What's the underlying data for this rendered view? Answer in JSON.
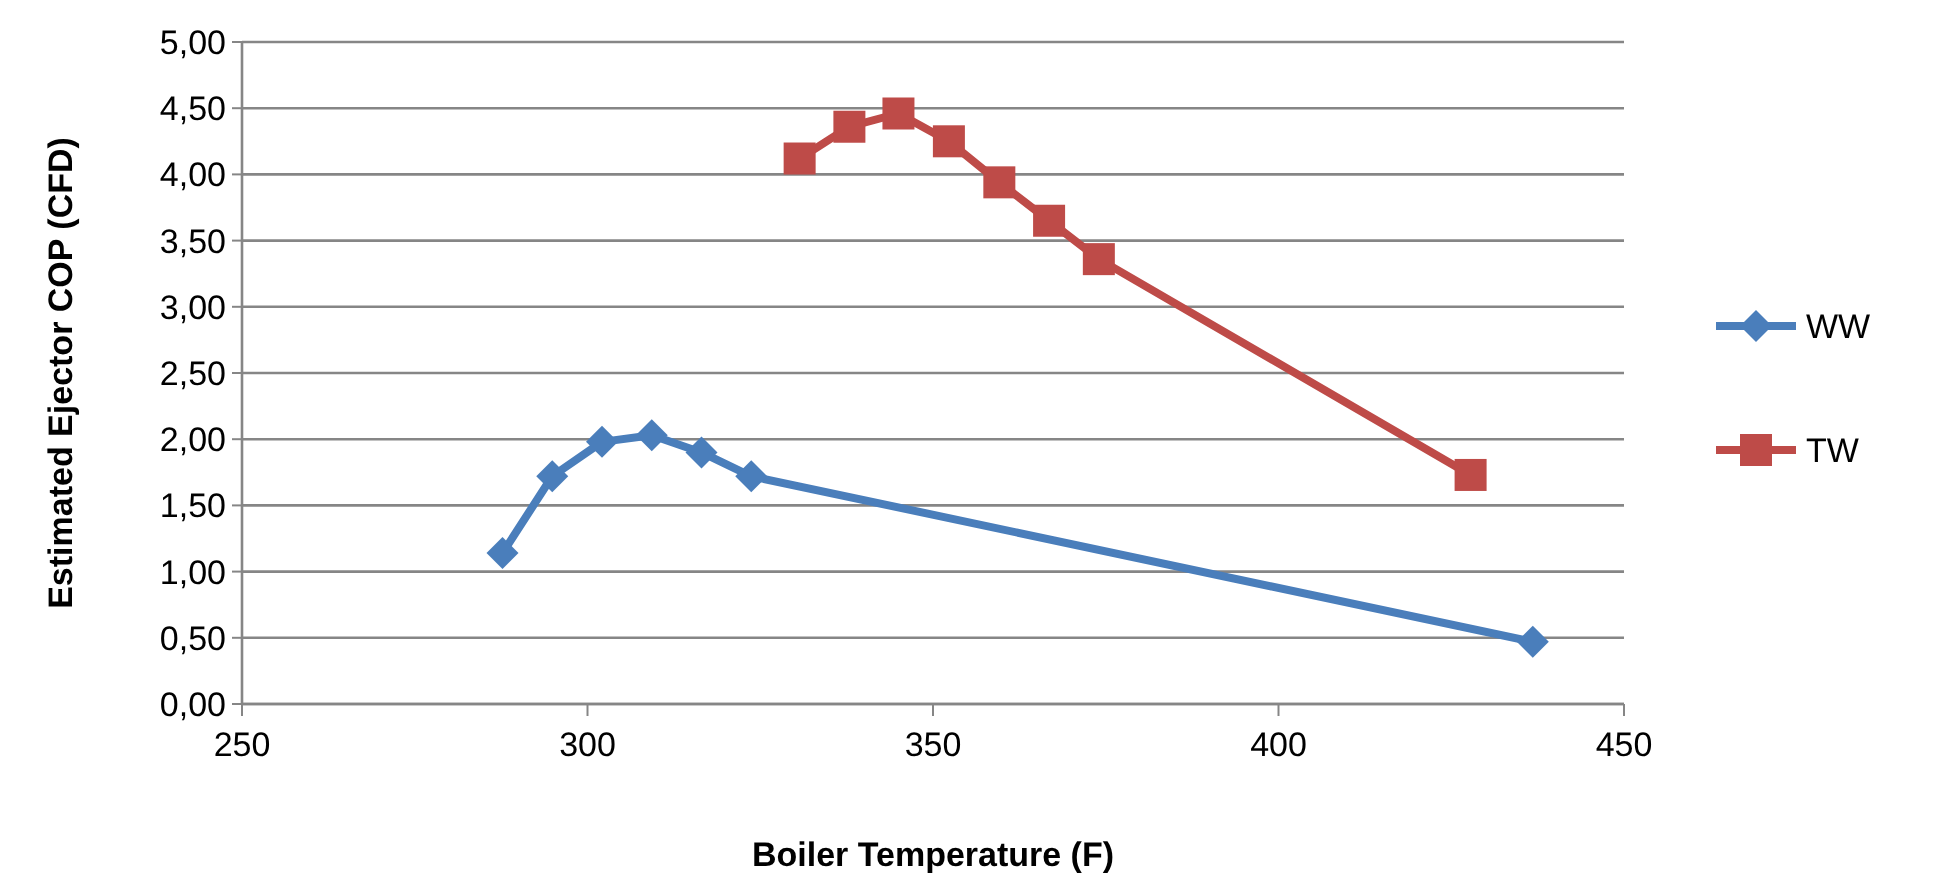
{
  "chart_data": {
    "type": "line",
    "xlabel": "Boiler Temperature (F)",
    "ylabel": "Estimated Ejector COP (CFD)",
    "xlim": [
      250,
      450
    ],
    "xticks": [
      250,
      300,
      350,
      400,
      450
    ],
    "ylim": [
      0,
      5
    ],
    "yticks": [
      {
        "value": 0,
        "label": "0,00"
      },
      {
        "value": 0.5,
        "label": "0,50"
      },
      {
        "value": 1,
        "label": "1,00"
      },
      {
        "value": 1.5,
        "label": "1,50"
      },
      {
        "value": 2,
        "label": "2,00"
      },
      {
        "value": 2.5,
        "label": "2,50"
      },
      {
        "value": 3,
        "label": "3,00"
      },
      {
        "value": 3.5,
        "label": "3,50"
      },
      {
        "value": 4,
        "label": "4,00"
      },
      {
        "value": 4.5,
        "label": "4,50"
      },
      {
        "value": 5,
        "label": "5,00"
      }
    ],
    "grid": "y",
    "legend": "right",
    "line_style": "solid",
    "series": [
      {
        "name": "WW",
        "color": "#4a7ebb",
        "marker": "diamond",
        "x": [
          287.7,
          294.9,
          302.1,
          309.3,
          316.5,
          323.7,
          436.8
        ],
        "values": [
          1.14,
          1.72,
          1.98,
          2.03,
          1.9,
          1.72,
          0.47
        ]
      },
      {
        "name": "TW",
        "color": "#be4b48",
        "marker": "square",
        "x": [
          330.7,
          337.9,
          345,
          352.3,
          359.6,
          366.8,
          374,
          427.8
        ],
        "values": [
          4.12,
          4.36,
          4.46,
          4.25,
          3.94,
          3.65,
          3.36,
          1.73
        ]
      }
    ]
  }
}
